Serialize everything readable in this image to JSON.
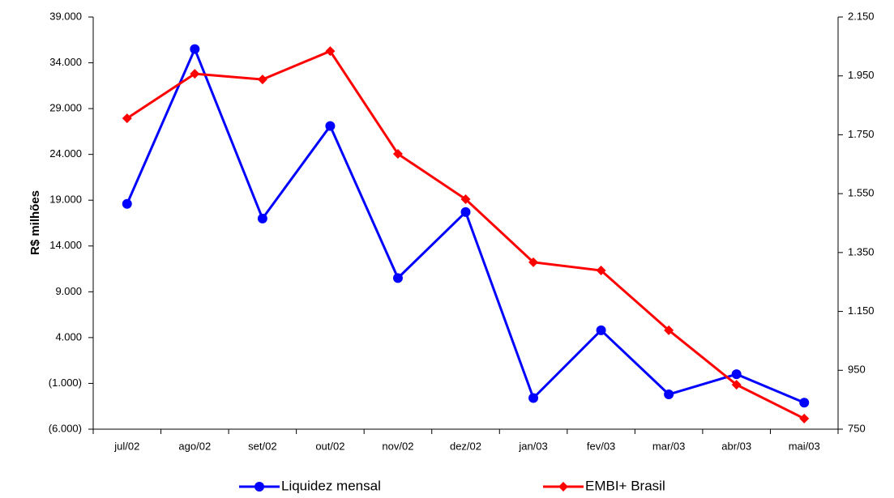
{
  "chart_data": {
    "type": "line",
    "y_label": "R$ milhões",
    "categories": [
      "jul/02",
      "ago/02",
      "set/02",
      "out/02",
      "nov/02",
      "dez/02",
      "jan/03",
      "fev/03",
      "mar/03",
      "abr/03",
      "mai/03"
    ],
    "series": [
      {
        "name": "Liquidez mensal",
        "color": "#0000ff",
        "marker": "circle",
        "values": [
          18600,
          35500,
          17000,
          27100,
          10500,
          17700,
          -2600,
          4800,
          -2200,
          0,
          -3100
        ]
      },
      {
        "name": "EMBI+ Brasil",
        "color": "#ff0000",
        "marker": "diamond",
        "axis": "y2",
        "values": [
          1806,
          1957,
          1938,
          2034,
          1685,
          1531,
          1317,
          1289,
          1086,
          901,
          786
        ]
      }
    ],
    "ylim": [
      -6000,
      39000
    ],
    "yticks": [
      {
        "value": -6000,
        "label": "(6.000)"
      },
      {
        "value": -1000,
        "label": "(1.000)"
      },
      {
        "value": 4000,
        "label": "4.000"
      },
      {
        "value": 9000,
        "label": "9.000"
      },
      {
        "value": 14000,
        "label": "14.000"
      },
      {
        "value": 19000,
        "label": "19.000"
      },
      {
        "value": 24000,
        "label": "24.000"
      },
      {
        "value": 29000,
        "label": "29.000"
      },
      {
        "value": 34000,
        "label": "34.000"
      },
      {
        "value": 39000,
        "label": "39.000"
      }
    ],
    "y2lim": [
      750,
      2150
    ],
    "y2ticks": [
      750,
      950,
      {
        "value": 1150,
        "label": "1.150"
      },
      {
        "value": 1350,
        "label": "1.350"
      },
      {
        "value": 1550,
        "label": "1.550"
      },
      {
        "value": 1750,
        "label": "1.750"
      },
      {
        "value": 1950,
        "label": "1.950"
      },
      {
        "value": 2150,
        "label": "2.150"
      }
    ],
    "grid": false,
    "legend": "bottom"
  }
}
